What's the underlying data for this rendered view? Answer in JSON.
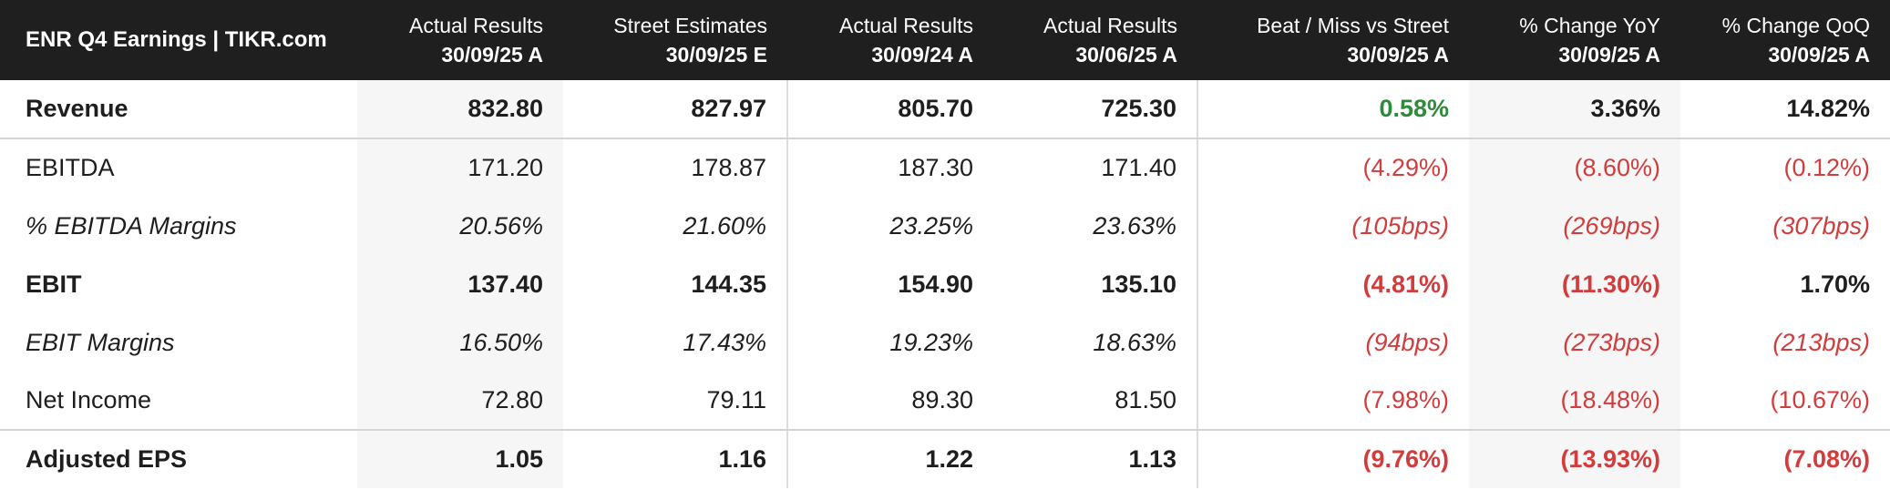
{
  "header": {
    "title": "ENR Q4 Earnings | TIKR.com",
    "columns": [
      {
        "label": "Actual Results",
        "date": "30/09/25 A"
      },
      {
        "label": "Street Estimates",
        "date": "30/09/25 E"
      },
      {
        "label": "Actual Results",
        "date": "30/09/24 A"
      },
      {
        "label": "Actual Results",
        "date": "30/06/25 A"
      },
      {
        "label": "Beat / Miss vs Street",
        "date": "30/09/25 A"
      },
      {
        "label": "% Change YoY",
        "date": "30/09/25 A"
      },
      {
        "label": "% Change QoQ",
        "date": "30/09/25 A"
      }
    ]
  },
  "rows": [
    {
      "label": "Revenue",
      "values": [
        "832.80",
        "827.97",
        "805.70",
        "725.30",
        "0.58%",
        "3.36%",
        "14.82%"
      ]
    },
    {
      "label": "EBITDA",
      "values": [
        "171.20",
        "178.87",
        "187.30",
        "171.40",
        "(4.29%)",
        "(8.60%)",
        "(0.12%)"
      ]
    },
    {
      "label": "% EBITDA Margins",
      "values": [
        "20.56%",
        "21.60%",
        "23.25%",
        "23.63%",
        "(105bps)",
        "(269bps)",
        "(307bps)"
      ]
    },
    {
      "label": "EBIT",
      "values": [
        "137.40",
        "144.35",
        "154.90",
        "135.10",
        "(4.81%)",
        "(11.30%)",
        "1.70%"
      ]
    },
    {
      "label": "EBIT Margins",
      "values": [
        "16.50%",
        "17.43%",
        "19.23%",
        "18.63%",
        "(94bps)",
        "(273bps)",
        "(213bps)"
      ]
    },
    {
      "label": "Net Income",
      "values": [
        "72.80",
        "79.11",
        "89.30",
        "81.50",
        "(7.98%)",
        "(18.48%)",
        "(10.67%)"
      ]
    },
    {
      "label": "Adjusted EPS",
      "values": [
        "1.05",
        "1.16",
        "1.22",
        "1.13",
        "(9.76%)",
        "(13.93%)",
        "(7.08%)"
      ]
    }
  ],
  "colors": {
    "header_bg": "#1f1f1f",
    "negative": "#d23c3c",
    "positive": "#2e8b3a",
    "shaded_column": "#f6f6f6"
  }
}
